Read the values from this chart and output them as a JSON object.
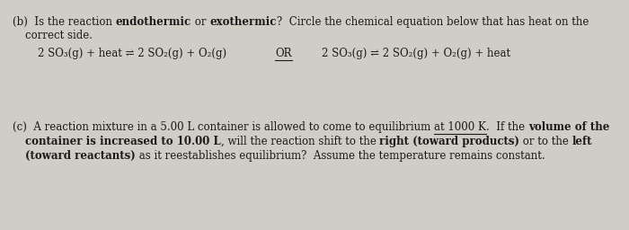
{
  "bg_color": "#d0cdc6",
  "text_color": "#1a1a1a",
  "fontsize_main": 8.5,
  "font_family": "DejaVu Serif",
  "line_b1_seg1": "(b)  Is the reaction ",
  "line_b1_seg2": "endothermic",
  "line_b1_seg3": " or ",
  "line_b1_seg4": "exothermic",
  "line_b1_seg5": "?  Circle the chemical equation below that has heat on the",
  "line_b2": "correct side.",
  "eq_left": "2 SO₃(g) + heat ⇌ 2 SO₂(g) + O₂(g)",
  "eq_or": "OR",
  "eq_right": "2 SO₃(g) ⇌ 2 SO₂(g) + O₂(g) + heat",
  "line_c1_seg1": "(c)  A reaction mixture in a 5.00 L container is allowed to come to equilibrium ",
  "line_c1_seg2": "at 1000 K",
  "line_c1_seg3": ".  If the ",
  "line_c1_seg4": "volume of the",
  "line_c2_seg1": "container is ",
  "line_c2_seg2": "increased to 10.00 L",
  "line_c2_seg3": ", will the reaction shift to the ",
  "line_c2_seg4": "right (toward products)",
  "line_c2_seg5": " or to the ",
  "line_c2_seg6": "left",
  "line_c3_seg1": "(toward reactants)",
  "line_c3_seg2": " as it reestablishes equilibrium?  Assume the temperature remains constant."
}
